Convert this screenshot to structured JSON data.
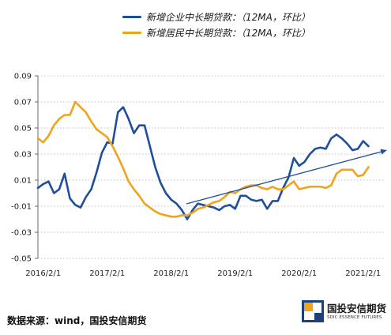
{
  "chart_data": {
    "type": "line",
    "legend_position": "top",
    "grid": true,
    "ylim": [
      -0.05,
      0.09
    ],
    "y_tick_labels": [
      "0.09",
      "0.07",
      "0.05",
      "0.03",
      "0.01",
      "-0.01",
      "-0.03",
      "-0.05"
    ],
    "x_tick_labels": [
      "2016/2/1",
      "2017/2/1",
      "2018/2/1",
      "2019/2/1",
      "2020/2/1",
      "2021/2/1"
    ],
    "x": [
      "2016/1/1",
      "2016/2/1",
      "2016/3/1",
      "2016/4/1",
      "2016/5/1",
      "2016/6/1",
      "2016/7/1",
      "2016/8/1",
      "2016/9/1",
      "2016/10/1",
      "2016/11/1",
      "2016/12/1",
      "2017/1/1",
      "2017/2/1",
      "2017/3/1",
      "2017/4/1",
      "2017/5/1",
      "2017/6/1",
      "2017/7/1",
      "2017/8/1",
      "2017/9/1",
      "2017/10/1",
      "2017/11/1",
      "2017/12/1",
      "2018/1/1",
      "2018/2/1",
      "2018/3/1",
      "2018/4/1",
      "2018/5/1",
      "2018/6/1",
      "2018/7/1",
      "2018/8/1",
      "2018/9/1",
      "2018/10/1",
      "2018/11/1",
      "2018/12/1",
      "2019/1/1",
      "2019/2/1",
      "2019/3/1",
      "2019/4/1",
      "2019/5/1",
      "2019/6/1",
      "2019/7/1",
      "2019/8/1",
      "2019/9/1",
      "2019/10/1",
      "2019/11/1",
      "2019/12/1",
      "2020/1/1",
      "2020/2/1",
      "2020/3/1",
      "2020/4/1",
      "2020/5/1",
      "2020/6/1",
      "2020/7/1",
      "2020/8/1",
      "2020/9/1",
      "2020/10/1",
      "2020/11/1",
      "2020/12/1",
      "2021/1/1",
      "2021/2/1",
      "2021/3/1"
    ],
    "series": [
      {
        "name": "新增企业中长期贷款：（12MA，环比）",
        "color": "#1f4f9b",
        "values": [
          0.004,
          0.007,
          0.009,
          0.0,
          0.003,
          0.015,
          -0.004,
          -0.009,
          -0.011,
          -0.003,
          0.003,
          0.016,
          0.031,
          0.039,
          0.038,
          0.062,
          0.066,
          0.057,
          0.046,
          0.052,
          0.052,
          0.036,
          0.02,
          0.008,
          0.0,
          -0.005,
          -0.008,
          -0.013,
          -0.02,
          -0.013,
          -0.008,
          -0.009,
          -0.01,
          -0.011,
          -0.013,
          -0.01,
          -0.009,
          -0.012,
          -0.002,
          -0.002,
          -0.005,
          -0.006,
          -0.005,
          -0.012,
          -0.006,
          -0.006,
          0.004,
          0.012,
          0.027,
          0.021,
          0.024,
          0.03,
          0.034,
          0.035,
          0.034,
          0.042,
          0.045,
          0.042,
          0.038,
          0.033,
          0.034,
          0.04,
          0.036
        ]
      },
      {
        "name": "新增居民中长期贷款：（12MA，环比）",
        "color": "#f2a31c",
        "values": [
          0.042,
          0.039,
          0.044,
          0.052,
          0.057,
          0.06,
          0.06,
          0.07,
          0.066,
          0.062,
          0.055,
          0.049,
          0.046,
          0.043,
          0.036,
          0.028,
          0.019,
          0.009,
          0.003,
          -0.002,
          -0.008,
          -0.011,
          -0.014,
          -0.016,
          -0.017,
          -0.018,
          -0.018,
          -0.017,
          -0.017,
          -0.015,
          -0.012,
          -0.011,
          -0.009,
          -0.007,
          -0.006,
          -0.003,
          0.001,
          0.0,
          0.003,
          0.005,
          0.006,
          0.006,
          0.004,
          0.003,
          0.005,
          0.003,
          0.003,
          0.006,
          0.009,
          0.003,
          0.004,
          0.005,
          0.005,
          0.005,
          0.004,
          0.006,
          0.015,
          0.018,
          0.018,
          0.018,
          0.013,
          0.014,
          0.02
        ]
      }
    ]
  },
  "colors": {
    "trend_arrow": "#1f4f9b"
  },
  "source": "数据来源：wind，国投安信期货",
  "logo": {
    "name": "国投安信期货",
    "subtitle": "SDIC ESSENCE FUTURES"
  }
}
